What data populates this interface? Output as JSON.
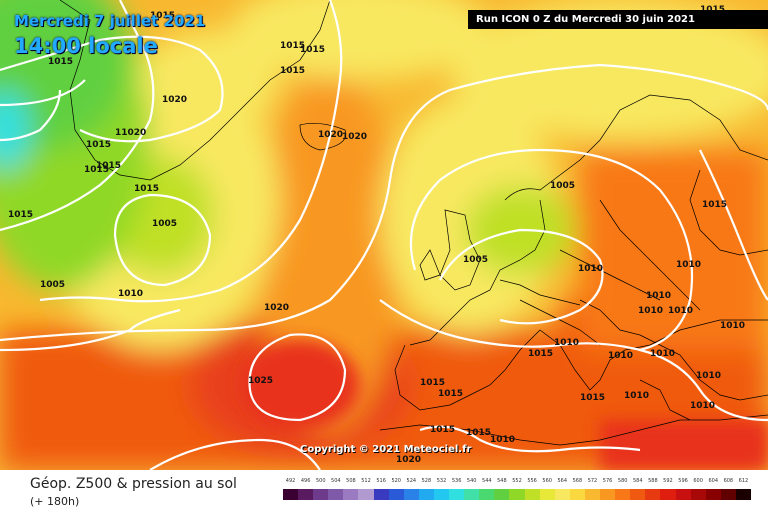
{
  "header": {
    "date_title": "Mercredi 7 juillet 2021",
    "local_time": "14:00 locale",
    "run_banner": "Run ICON 0 Z du Mercredi 30 juin 2021"
  },
  "copyright": "Copyright © 2021 Meteociel.fr",
  "footer": {
    "product_title": "Géop. Z500 & pression au sol",
    "lead_time": "(+ 180h)"
  },
  "isobar_labels": [
    "1015",
    "1015",
    "1015",
    "1015",
    "1015",
    "1020",
    "1020",
    "1020",
    "1015",
    "1015",
    "11020",
    "1015",
    "1015",
    "1015",
    "1005",
    "1015",
    "1005",
    "1010",
    "1005",
    "1005",
    "1010",
    "1020",
    "1025",
    "1015",
    "1010",
    "1015",
    "1010",
    "1015",
    "1010",
    "1010",
    "1010",
    "1015",
    "1010",
    "1010",
    "1010",
    "1010",
    "1015",
    "1010",
    "1010",
    "1015",
    "1015",
    "1010",
    "1020"
  ],
  "legend": {
    "values": [
      "492",
      "496",
      "500",
      "504",
      "508",
      "512",
      "516",
      "520",
      "524",
      "528",
      "532",
      "536",
      "540",
      "544",
      "548",
      "552",
      "556",
      "560",
      "564",
      "568",
      "572",
      "576",
      "580",
      "584",
      "588",
      "592",
      "596",
      "600",
      "604",
      "608",
      "612"
    ],
    "colors": [
      "#3a0032",
      "#5a1a60",
      "#6e3a8c",
      "#7e5aa8",
      "#9a7ac0",
      "#b09ad0",
      "#3a3ac0",
      "#2a5ad8",
      "#2a82e8",
      "#22aaf0",
      "#22c8f0",
      "#30e0e0",
      "#40e0a8",
      "#4ad870",
      "#60d040",
      "#90d828",
      "#c0e028",
      "#e8e838",
      "#f8e860",
      "#fad840",
      "#f8b830",
      "#f89820",
      "#f87818",
      "#f05a10",
      "#e83a10",
      "#e01e10",
      "#c81010",
      "#a80808",
      "#880000",
      "#600000",
      "#1a0000"
    ]
  },
  "colors": {
    "title_text": "#22aaff",
    "banner_bg": "#000000",
    "isobar": "#ffffff"
  }
}
